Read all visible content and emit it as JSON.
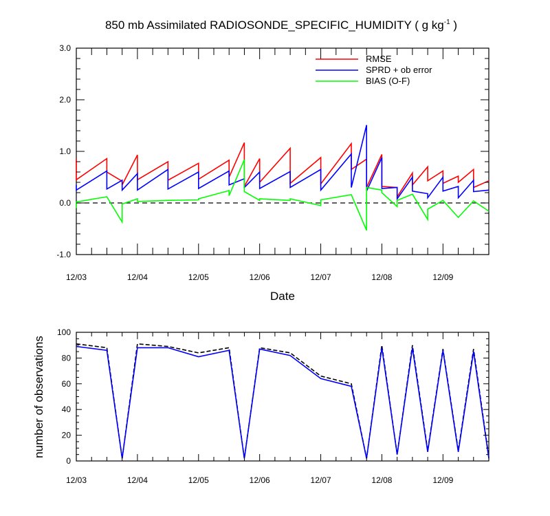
{
  "colors": {
    "rmse": "#ff0000",
    "sprd": "#0000ff",
    "bias": "#00ff00",
    "total": "#000000",
    "used": "#0000ff"
  },
  "chart_data": [
    {
      "type": "line",
      "title": "850 mb Assimilated RADIOSONDE_SPECIFIC_HUMIDITY ( g kg",
      "title_sup": "-1",
      "title_end": " )",
      "xlabel": "Date",
      "ylabel": "",
      "xlim": [
        0,
        27
      ],
      "ylim": [
        -1.0,
        3.0
      ],
      "yticks": [
        -1.0,
        0.0,
        1.0,
        2.0,
        3.0
      ],
      "ytick_labels": [
        "-1.0",
        "0.0",
        "1.0",
        "2.0",
        "3.0"
      ],
      "xticks": [
        0,
        4,
        8,
        12,
        16,
        20,
        24
      ],
      "xtick_labels": [
        "12/03",
        "12/04",
        "12/05",
        "12/06",
        "12/07",
        "12/08",
        "12/09"
      ],
      "zero_line": true,
      "legend_position": "top-right",
      "series": [
        {
          "name": "RMSE",
          "color_key": "rmse",
          "points": [
            [
              0,
              0.85
            ],
            [
              0,
              0.45
            ],
            [
              2,
              0.86
            ],
            [
              2,
              0.6
            ],
            [
              3,
              0.42
            ],
            [
              3,
              0.35
            ],
            [
              4,
              0.93
            ],
            [
              4,
              0.45
            ],
            [
              6,
              0.8
            ],
            [
              6,
              0.44
            ],
            [
              8,
              0.77
            ],
            [
              8,
              0.46
            ],
            [
              10,
              0.83
            ],
            [
              10,
              0.5
            ],
            [
              11,
              1.17
            ],
            [
              11,
              0.32
            ],
            [
              12,
              0.86
            ],
            [
              12,
              0.4
            ],
            [
              14,
              1.06
            ],
            [
              14,
              0.38
            ],
            [
              16,
              0.88
            ],
            [
              16,
              0.37
            ],
            [
              18,
              1.15
            ],
            [
              18,
              0.65
            ],
            [
              19,
              0.85
            ],
            [
              19,
              0.3
            ],
            [
              20,
              0.94
            ],
            [
              20,
              0.32
            ],
            [
              21,
              0.3
            ],
            [
              21,
              0.12
            ],
            [
              22,
              0.58
            ],
            [
              22,
              0.35
            ],
            [
              23,
              0.7
            ],
            [
              23,
              0.43
            ],
            [
              24,
              0.62
            ],
            [
              24,
              0.38
            ],
            [
              25,
              0.52
            ],
            [
              25,
              0.4
            ],
            [
              26,
              0.65
            ],
            [
              26,
              0.3
            ],
            [
              27,
              0.43
            ]
          ]
        },
        {
          "name": "SPRD + ob error",
          "color_key": "sprd",
          "points": [
            [
              0,
              0.35
            ],
            [
              0,
              0.25
            ],
            [
              2,
              0.62
            ],
            [
              2,
              0.27
            ],
            [
              3,
              0.44
            ],
            [
              3,
              0.25
            ],
            [
              4,
              0.57
            ],
            [
              4,
              0.25
            ],
            [
              6,
              0.65
            ],
            [
              6,
              0.27
            ],
            [
              8,
              0.6
            ],
            [
              8,
              0.28
            ],
            [
              10,
              0.62
            ],
            [
              10,
              0.35
            ],
            [
              11,
              0.47
            ],
            [
              11,
              0.3
            ],
            [
              12,
              0.6
            ],
            [
              12,
              0.28
            ],
            [
              14,
              0.61
            ],
            [
              14,
              0.3
            ],
            [
              16,
              0.65
            ],
            [
              16,
              0.25
            ],
            [
              18,
              0.95
            ],
            [
              18,
              0.3
            ],
            [
              19,
              1.51
            ],
            [
              19,
              0.23
            ],
            [
              20,
              0.88
            ],
            [
              20,
              0.28
            ],
            [
              21,
              0.3
            ],
            [
              21,
              0.08
            ],
            [
              22,
              0.5
            ],
            [
              22,
              0.23
            ],
            [
              23,
              0.18
            ],
            [
              23,
              0.1
            ],
            [
              24,
              0.5
            ],
            [
              24,
              0.23
            ],
            [
              25,
              0.32
            ],
            [
              25,
              0.1
            ],
            [
              26,
              0.44
            ],
            [
              26,
              0.22
            ],
            [
              27,
              0.25
            ]
          ]
        },
        {
          "name": "BIAS (O-F)",
          "color_key": "bias",
          "points": [
            [
              0,
              -0.1
            ],
            [
              0,
              0.02
            ],
            [
              2,
              0.12
            ],
            [
              3,
              -0.37
            ],
            [
              3,
              -0.02
            ],
            [
              4,
              0.08
            ],
            [
              4,
              0.03
            ],
            [
              6,
              0.05
            ],
            [
              8,
              0.06
            ],
            [
              8,
              0.08
            ],
            [
              10,
              0.24
            ],
            [
              10,
              0.14
            ],
            [
              11,
              0.84
            ],
            [
              11,
              0.22
            ],
            [
              12,
              0.05
            ],
            [
              12,
              0.08
            ],
            [
              14,
              0.05
            ],
            [
              14,
              0.08
            ],
            [
              16,
              -0.05
            ],
            [
              16,
              0.06
            ],
            [
              18,
              0.16
            ],
            [
              19,
              -0.53
            ],
            [
              19,
              0.3
            ],
            [
              20,
              0.25
            ],
            [
              20,
              0.2
            ],
            [
              21,
              -0.07
            ],
            [
              21,
              0.05
            ],
            [
              22,
              0.17
            ],
            [
              23,
              -0.32
            ],
            [
              23,
              -0.12
            ],
            [
              24,
              0.05
            ],
            [
              25,
              -0.28
            ],
            [
              26,
              0.04
            ],
            [
              27,
              -0.16
            ]
          ]
        }
      ]
    },
    {
      "type": "line",
      "title": "",
      "xlabel": "",
      "ylabel": "number of observations",
      "xlim": [
        0,
        27
      ],
      "ylim": [
        0,
        100
      ],
      "yticks": [
        0,
        20,
        40,
        60,
        80,
        100
      ],
      "ytick_labels": [
        "0",
        "20",
        "40",
        "60",
        "80",
        "100"
      ],
      "xticks": [
        0,
        4,
        8,
        12,
        16,
        20,
        24
      ],
      "xtick_labels": [
        "12/03",
        "12/04",
        "12/05",
        "12/06",
        "12/07",
        "12/08",
        "12/09"
      ],
      "series": [
        {
          "style": "dashed",
          "color_key": "total",
          "points": [
            [
              0,
              91
            ],
            [
              2,
              88
            ],
            [
              3,
              2
            ],
            [
              4,
              91
            ],
            [
              6,
              89
            ],
            [
              8,
              84
            ],
            [
              10,
              88
            ],
            [
              11,
              2
            ],
            [
              12,
              88
            ],
            [
              14,
              84
            ],
            [
              16,
              66
            ],
            [
              18,
              60
            ],
            [
              19,
              2
            ],
            [
              20,
              90
            ],
            [
              21,
              5
            ],
            [
              22,
              90
            ],
            [
              23,
              8
            ],
            [
              24,
              87
            ],
            [
              25,
              8
            ],
            [
              26,
              87
            ],
            [
              27,
              3
            ]
          ]
        },
        {
          "style": "solid",
          "color_key": "used",
          "points": [
            [
              0,
              89
            ],
            [
              2,
              86
            ],
            [
              3,
              2
            ],
            [
              4,
              88
            ],
            [
              6,
              88
            ],
            [
              8,
              81
            ],
            [
              10,
              86
            ],
            [
              11,
              2
            ],
            [
              12,
              87
            ],
            [
              14,
              82
            ],
            [
              16,
              64
            ],
            [
              18,
              58
            ],
            [
              19,
              2
            ],
            [
              20,
              88
            ],
            [
              21,
              5
            ],
            [
              22,
              88
            ],
            [
              23,
              7
            ],
            [
              24,
              86
            ],
            [
              25,
              7
            ],
            [
              26,
              85
            ],
            [
              27,
              2
            ]
          ]
        }
      ]
    }
  ]
}
